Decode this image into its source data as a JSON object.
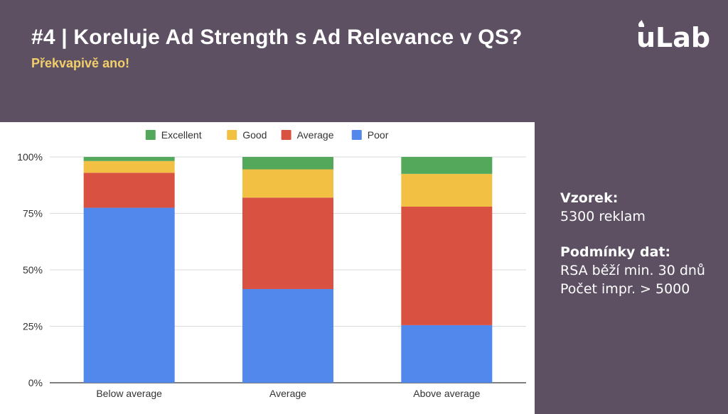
{
  "slide": {
    "title": "#4 | Koreluje Ad Strength s Ad Relevance v QS?",
    "subtitle": "Překvapivě ano!",
    "logo_text": "uLab"
  },
  "info": {
    "sample_heading": "Vzorek:",
    "sample_value": "5300 reklam",
    "conditions_heading": "Podmínky dat:",
    "condition_1": "RSA běží min. 30 dnů",
    "condition_2": "Počet impr. > 5000"
  },
  "colors": {
    "background": "#5d5063",
    "subtitle": "#f2cf6a",
    "excellent": "#53a85b",
    "good": "#f2c143",
    "average": "#d95241",
    "poor": "#5287eb"
  },
  "chart_data": {
    "type": "bar",
    "stacked": "percent",
    "title": "",
    "xlabel": "",
    "ylabel": "",
    "categories": [
      "Below average",
      "Average",
      "Above average"
    ],
    "series": [
      {
        "name": "Poor",
        "color": "#5287eb",
        "values": [
          77.5,
          41.5,
          25.5
        ]
      },
      {
        "name": "Average",
        "color": "#d95241",
        "values": [
          15.5,
          40.5,
          52.5
        ]
      },
      {
        "name": "Good",
        "color": "#f2c143",
        "values": [
          5.2,
          12.5,
          14.5
        ]
      },
      {
        "name": "Excellent",
        "color": "#53a85b",
        "values": [
          1.8,
          5.5,
          7.5
        ]
      }
    ],
    "legend_order": [
      "Excellent",
      "Good",
      "Average",
      "Poor"
    ],
    "legend_position": "top",
    "ylim": [
      0,
      100
    ],
    "yticks": [
      "0%",
      "25%",
      "50%",
      "75%",
      "100%"
    ],
    "ytick_values": [
      0,
      25,
      50,
      75,
      100
    ],
    "grid": true
  }
}
